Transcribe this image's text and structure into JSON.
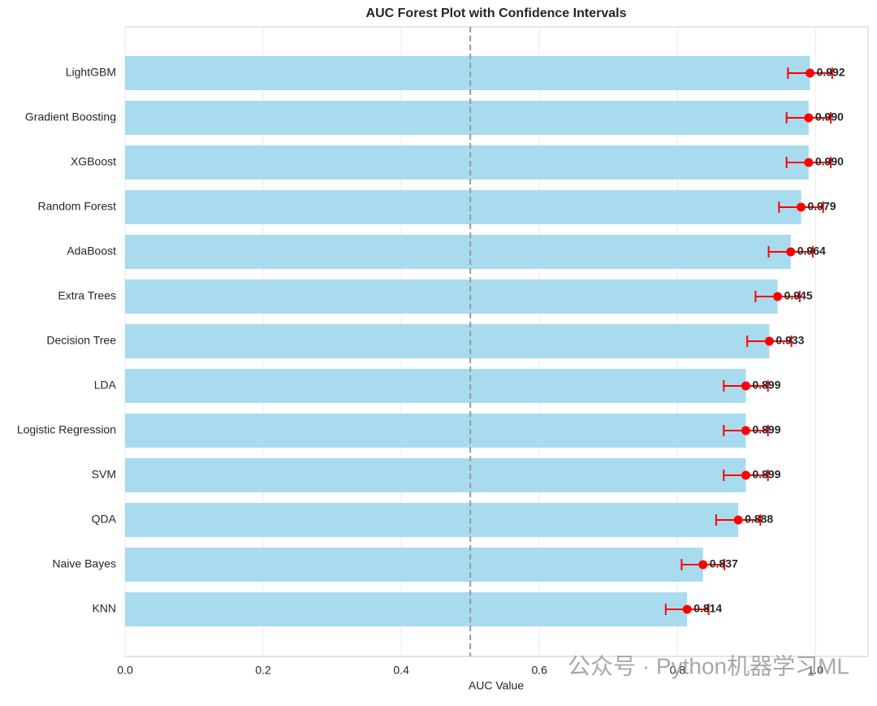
{
  "chart_data": {
    "type": "forest",
    "title": "AUC Forest Plot with Confidence Intervals",
    "x_label": "AUC Value",
    "categories": [
      "LightGBM",
      "Gradient Boosting",
      "XGBoost",
      "Random Forest",
      "AdaBoost",
      "Extra Trees",
      "Decision Tree",
      "LDA",
      "Logistic Regression",
      "SVM",
      "QDA",
      "Naive Bayes",
      "KNN"
    ],
    "values": [
      0.992,
      0.99,
      0.99,
      0.979,
      0.964,
      0.945,
      0.933,
      0.899,
      0.899,
      0.899,
      0.888,
      0.837,
      0.814
    ],
    "value_labels": [
      "0.992",
      "0.990",
      "0.990",
      "0.979",
      "0.964",
      "0.945",
      "0.933",
      "0.899",
      "0.899",
      "0.899",
      "0.888",
      "0.837",
      "0.814"
    ],
    "errors": [
      0.032,
      0.032,
      0.032,
      0.032,
      0.032,
      0.032,
      0.032,
      0.032,
      0.032,
      0.032,
      0.032,
      0.031,
      0.031
    ],
    "bar_color": "#a9dbef",
    "point_color": "#ff0000",
    "reference_line": 0.5,
    "xlim": [
      0,
      1.076
    ],
    "xticks": [
      {
        "value": 0,
        "label": "0.0"
      },
      0.2,
      0.4,
      0.6,
      0.8,
      {
        "value": 1,
        "label": "1.0"
      }
    ],
    "grid": true,
    "watermark": "公众号 · Python机器学习ML"
  }
}
